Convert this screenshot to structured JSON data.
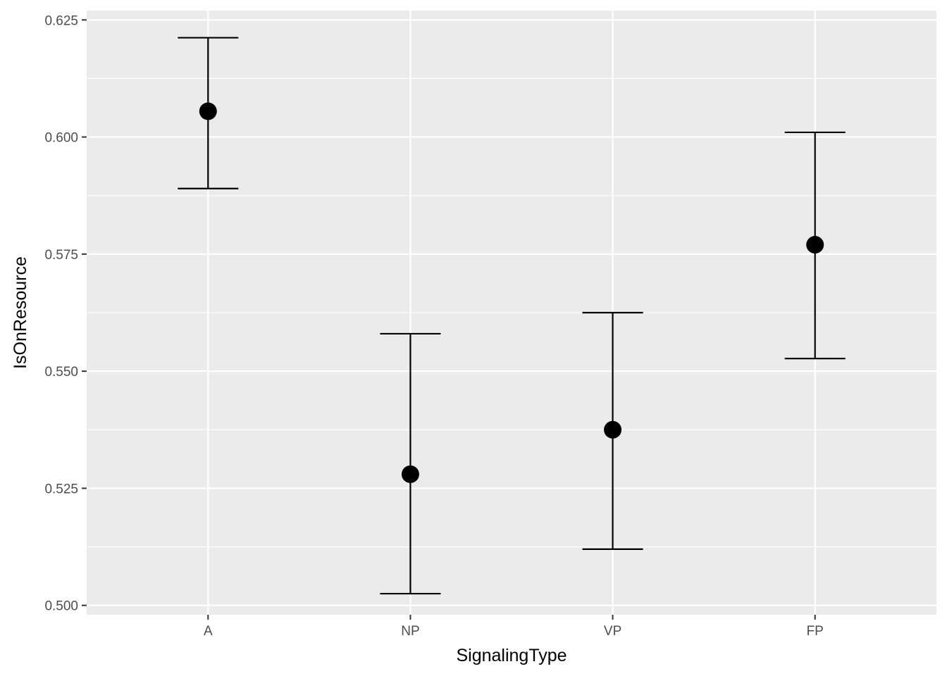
{
  "chart_data": {
    "type": "scatter",
    "variant": "point-with-errorbars",
    "xlabel": "SignalingType",
    "ylabel": "IsOnResource",
    "categories": [
      "A",
      "NP",
      "VP",
      "FP"
    ],
    "series": [
      {
        "values": [
          0.6055,
          0.528,
          0.5375,
          0.577
        ],
        "lower": [
          0.589,
          0.5025,
          0.512,
          0.5527
        ],
        "upper": [
          0.6212,
          0.558,
          0.5625,
          0.601
        ]
      }
    ],
    "ylim": [
      0.498,
      0.627
    ],
    "yticks": [
      0.5,
      0.525,
      0.55,
      0.575,
      0.6,
      0.625
    ],
    "ytick_labels": [
      "0.500",
      "0.525",
      "0.550",
      "0.575",
      "0.600",
      "0.625"
    ],
    "grid": true,
    "legend": "none",
    "colors": {
      "panel": "#ebebeb",
      "grid": "#ffffff",
      "marks": "#000000",
      "tick_text": "#4d4d4d",
      "title_text": "#000000"
    }
  }
}
